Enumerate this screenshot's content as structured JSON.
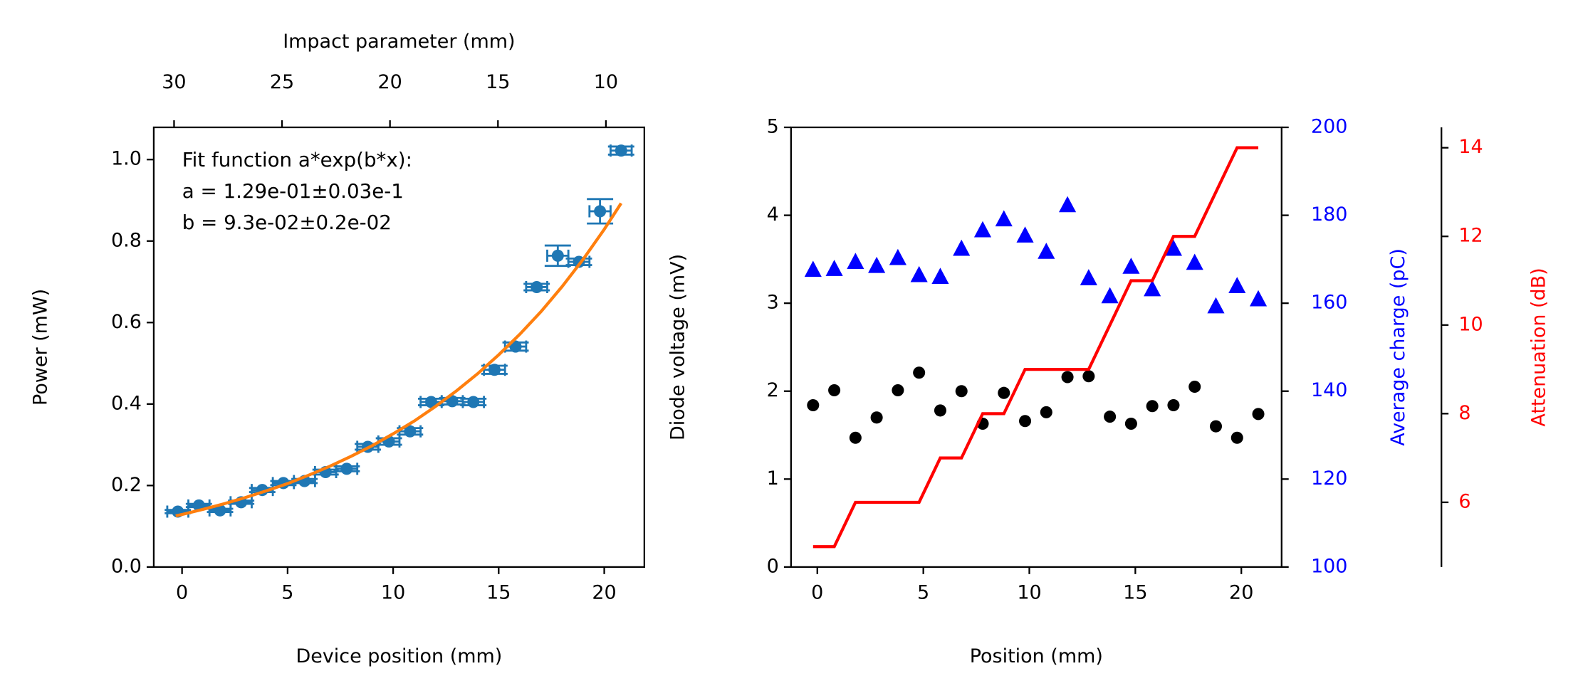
{
  "chart_data": [
    {
      "type": "errorbar",
      "xlabel": "Device position (mm)",
      "ylabel": "Power (mW)",
      "x2label": "Impact parameter (mm)",
      "xlim": [
        -1.34,
        21.9
      ],
      "xticks": [
        0,
        5,
        10,
        15,
        20
      ],
      "ylim": [
        0,
        1.079
      ],
      "yticks": [
        {
          "value": 0,
          "label": "0.0"
        },
        0.2,
        0.4,
        0.6,
        0.8,
        {
          "value": 1,
          "label": "1.0"
        }
      ],
      "x2lim": [
        30.94,
        8.22
      ],
      "x2ticks": [
        30,
        25,
        20,
        15,
        10
      ],
      "annotations": [
        "Fit function a*exp(b*x):",
        "a = 1.29e-01±0.03e-1",
        "b = 9.3e-02±0.2e-02"
      ],
      "series": [
        {
          "type": "errorbar",
          "color": "#1f77b4",
          "x": [
            -0.2,
            0.8,
            1.8,
            2.8,
            3.8,
            4.8,
            5.8,
            6.8,
            7.8,
            8.8,
            9.8,
            10.8,
            11.8,
            12.8,
            13.8,
            14.8,
            15.8,
            16.8,
            17.8,
            18.8,
            19.8,
            20.8
          ],
          "values": [
            0.136,
            0.151,
            0.139,
            0.159,
            0.189,
            0.206,
            0.211,
            0.233,
            0.241,
            0.295,
            0.308,
            0.333,
            0.405,
            0.407,
            0.405,
            0.484,
            0.541,
            0.687,
            0.764,
            0.749,
            0.873,
            1.022
          ],
          "xerr": [
            0.5,
            0.5,
            0.5,
            0.5,
            0.5,
            0.5,
            0.5,
            0.5,
            0.5,
            0.5,
            0.5,
            0.5,
            0.5,
            0.5,
            0.5,
            0.5,
            0.5,
            0.5,
            0.5,
            0.5,
            0.5,
            0.5
          ],
          "yerr": [
            0.004,
            0.004,
            0.004,
            0.004,
            0.005,
            0.005,
            0.005,
            0.006,
            0.006,
            0.007,
            0.008,
            0.008,
            0.008,
            0.008,
            0.008,
            0.01,
            0.01,
            0.008,
            0.025,
            0.008,
            0.03,
            0.01
          ]
        },
        {
          "type": "line",
          "color": "#ff7f0e",
          "x": [
            -0.3,
            0,
            1,
            2,
            3,
            4,
            5,
            6,
            7,
            8,
            9,
            10,
            11,
            12,
            13,
            14,
            15,
            16,
            17,
            18,
            19,
            20,
            20.8
          ],
          "values": [
            0.1254,
            0.129,
            0.1416,
            0.1554,
            0.1705,
            0.1871,
            0.2047,
            0.2254,
            0.2472,
            0.2715,
            0.2976,
            0.327,
            0.3583,
            0.3938,
            0.4324,
            0.4743,
            0.5208,
            0.5712,
            0.6265,
            0.688,
            0.7551,
            0.8287,
            0.8927
          ]
        }
      ]
    },
    {
      "type": "scatter",
      "xlabel": "Position (mm)",
      "ylabel": "Diode voltage (mV)",
      "y2label": "Average charge (pC)",
      "y3label": "Attenuation (dB)",
      "xlim": [
        -1.24,
        21.9
      ],
      "xticks": [
        0,
        5,
        10,
        15,
        20
      ],
      "ylim": [
        0,
        5
      ],
      "yticks": [
        0,
        1,
        2,
        3,
        4,
        5
      ],
      "y2lim": [
        100,
        200
      ],
      "y2ticks": [
        100,
        120,
        140,
        160,
        180,
        200
      ],
      "y2color": "#0000ff",
      "y3lim": [
        4.54,
        14.46
      ],
      "y3ticks": [
        6,
        8,
        10,
        12,
        14
      ],
      "y3color": "#ff0000",
      "series": [
        {
          "type": "scatter",
          "marker": "circle",
          "color": "#000000",
          "axis": "y",
          "x": [
            -0.2,
            0.8,
            1.8,
            2.8,
            3.8,
            4.8,
            5.8,
            6.8,
            7.8,
            8.8,
            9.8,
            10.8,
            11.8,
            12.8,
            13.8,
            14.8,
            15.8,
            16.8,
            17.8,
            18.8,
            19.8,
            20.8
          ],
          "values": [
            1.84,
            2.01,
            1.47,
            1.7,
            2.01,
            2.21,
            1.78,
            2.0,
            1.63,
            1.98,
            1.66,
            1.76,
            2.16,
            2.17,
            1.71,
            1.63,
            1.83,
            1.84,
            2.05,
            1.6,
            1.47,
            1.74
          ]
        },
        {
          "type": "scatter",
          "marker": "triangle",
          "color": "#0000ff",
          "axis": "y2",
          "x": [
            -0.2,
            0.8,
            1.8,
            2.8,
            3.8,
            4.8,
            5.8,
            6.8,
            7.8,
            8.8,
            9.8,
            10.8,
            11.8,
            12.8,
            13.8,
            14.8,
            15.8,
            16.8,
            17.8,
            18.8,
            19.8,
            20.8
          ],
          "values": [
            167.6,
            167.8,
            169.4,
            168.5,
            170.3,
            166.4,
            166.0,
            172.4,
            176.6,
            179.1,
            175.4,
            171.7,
            182.3,
            165.7,
            161.6,
            168.3,
            163.2,
            172.4,
            169.2,
            159.3,
            163.9,
            160.9
          ]
        },
        {
          "type": "line",
          "color": "#ff0000",
          "axis": "y3",
          "x": [
            -0.2,
            0.8,
            1.8,
            2.8,
            3.8,
            4.8,
            5.8,
            6.8,
            7.8,
            8.8,
            9.8,
            10.8,
            11.8,
            12.8,
            13.8,
            14.8,
            15.8,
            16.8,
            17.8,
            18.8,
            19.8,
            20.8
          ],
          "values": [
            5,
            5,
            6,
            6,
            6,
            6,
            7,
            7,
            8,
            8,
            9,
            9,
            9,
            9,
            10,
            11,
            11,
            12,
            12,
            13,
            14,
            14
          ]
        }
      ]
    }
  ]
}
